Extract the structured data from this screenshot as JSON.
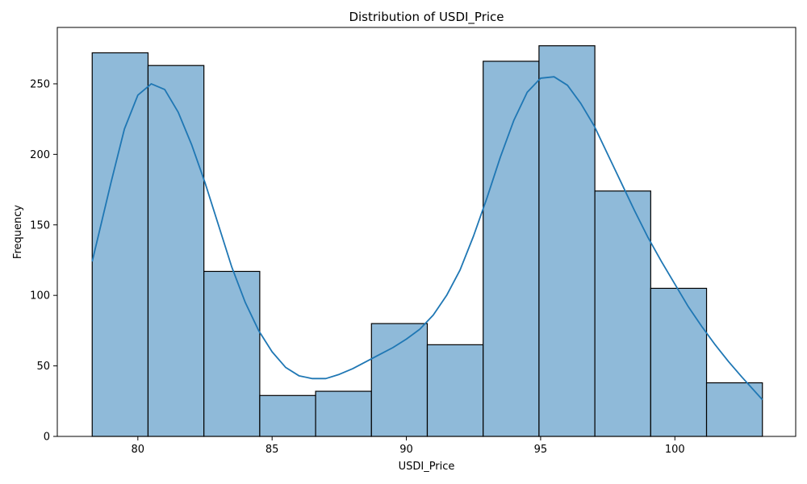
{
  "chart_data": {
    "type": "bar",
    "subtype": "histogram-with-kde",
    "title": "Distribution of USDI_Price",
    "xlabel": "USDI_Price",
    "ylabel": "Frequency",
    "xlim": [
      77.0,
      104.5
    ],
    "ylim": [
      0,
      290
    ],
    "bin_edges": [
      78.3,
      80.38,
      82.46,
      84.54,
      86.62,
      88.7,
      90.78,
      92.86,
      94.94,
      97.02,
      99.1,
      101.18,
      103.26
    ],
    "values": [
      272,
      263,
      117,
      29,
      32,
      80,
      65,
      266,
      277,
      174,
      105,
      38
    ],
    "x_ticks": [
      80,
      85,
      90,
      95,
      100
    ],
    "x_tick_labels": [
      "80",
      "85",
      "90",
      "95",
      "100"
    ],
    "y_ticks": [
      0,
      50,
      100,
      150,
      200,
      250
    ],
    "y_tick_labels": [
      "0",
      "50",
      "100",
      "150",
      "200",
      "250"
    ],
    "kde": {
      "x": [
        78.3,
        79.0,
        79.5,
        80.0,
        80.5,
        81.0,
        81.5,
        82.0,
        82.5,
        83.0,
        83.5,
        84.0,
        84.5,
        85.0,
        85.5,
        86.0,
        86.5,
        87.0,
        87.5,
        88.0,
        88.5,
        89.0,
        89.5,
        90.0,
        90.5,
        91.0,
        91.5,
        92.0,
        92.5,
        93.0,
        93.5,
        94.0,
        94.5,
        95.0,
        95.5,
        96.0,
        96.5,
        97.0,
        97.5,
        98.0,
        98.5,
        99.0,
        99.5,
        100.0,
        100.5,
        101.0,
        101.5,
        102.0,
        102.5,
        103.26
      ],
      "y": [
        124,
        180,
        218,
        242,
        250,
        246,
        230,
        207,
        180,
        150,
        120,
        95,
        75,
        60,
        49,
        43,
        41,
        41,
        44,
        48,
        53,
        58,
        63,
        69,
        76,
        86,
        100,
        118,
        142,
        169,
        198,
        224,
        244,
        254,
        255,
        249,
        236,
        220,
        200,
        180,
        160,
        141,
        124,
        108,
        92,
        78,
        65,
        53,
        42,
        26
      ]
    },
    "colors": {
      "bar_fill": "#8fbad9",
      "bar_edge": "#000000",
      "kde_line": "#1f77b4",
      "axes": "#000000"
    },
    "grid": false,
    "legend": "none"
  }
}
